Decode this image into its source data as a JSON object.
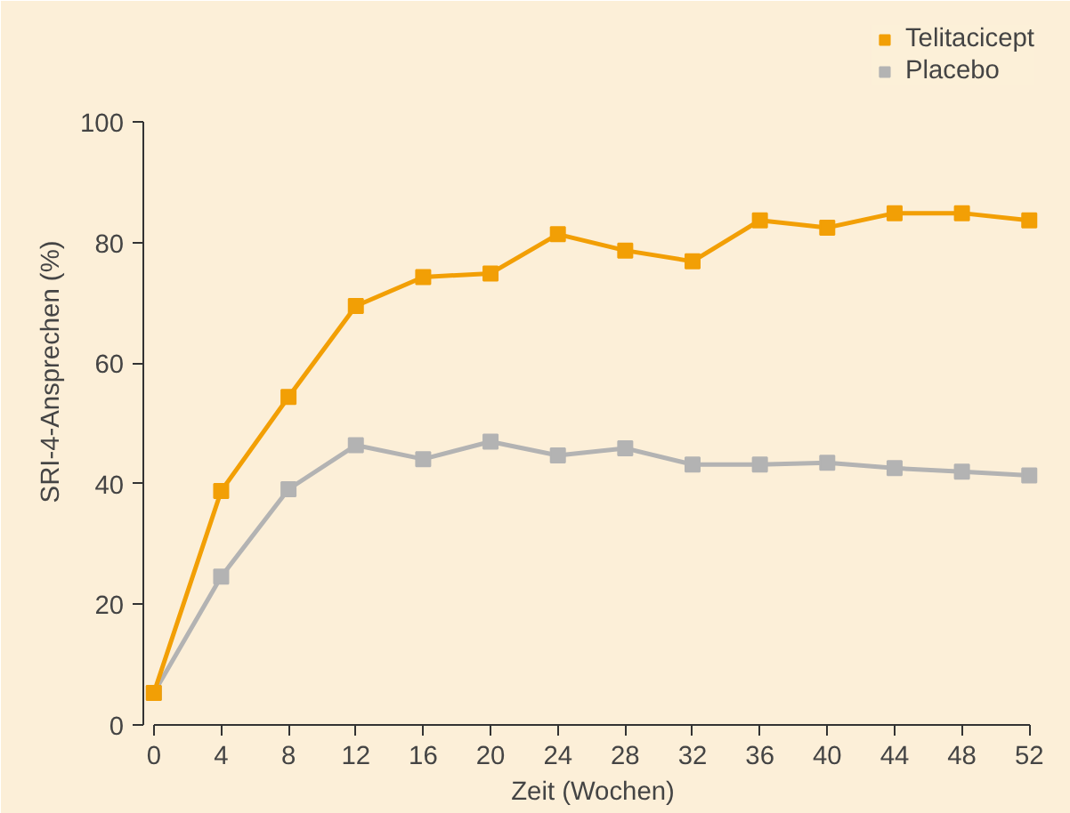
{
  "chart_data": {
    "type": "line",
    "xlabel": "Zeit (Wochen)",
    "ylabel": "SRI-4-Ansprechen (%)",
    "x": [
      0,
      4,
      8,
      12,
      16,
      20,
      24,
      28,
      32,
      36,
      40,
      44,
      48,
      52
    ],
    "series": [
      {
        "name": "Telitacicept",
        "color": "#f29f05",
        "values": [
          5.3,
          38.8,
          54.4,
          69.5,
          74.3,
          74.9,
          81.4,
          78.7,
          76.9,
          83.7,
          82.5,
          84.9,
          84.9,
          83.7
        ]
      },
      {
        "name": "Placebo",
        "color": "#b3b3b3",
        "values": [
          5.3,
          24.6,
          39.1,
          46.4,
          44.1,
          47.0,
          44.7,
          45.9,
          43.2,
          43.2,
          43.5,
          42.6,
          42.0,
          41.4
        ]
      }
    ],
    "xlim": [
      0,
      52
    ],
    "ylim": [
      0,
      100
    ],
    "xticks": [
      0,
      4,
      8,
      12,
      16,
      20,
      24,
      28,
      32,
      36,
      40,
      44,
      48,
      52
    ],
    "yticks": [
      0,
      20,
      40,
      60,
      80,
      100
    ],
    "grid": false,
    "legend": "top right",
    "marker": "square",
    "line_style": "solid"
  }
}
